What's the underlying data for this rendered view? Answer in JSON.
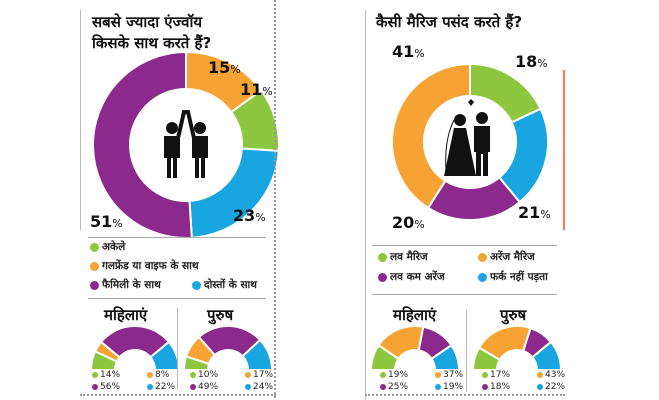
{
  "colors": {
    "green": "#8dc63f",
    "orange": "#f6a333",
    "purple": "#8b2a8c",
    "blue": "#19a6e0"
  },
  "left": {
    "title_line1": "सबसे ज्यादा एंज्वॉय",
    "title_line2": "किसके साथ करते हैं?",
    "chart_data": {
      "type": "pie",
      "segments": [
        {
          "key": "orange",
          "label": "गलफ्रेंड या वाइफ के साथ",
          "value": 15,
          "text": "15"
        },
        {
          "key": "green",
          "label": "अकेले",
          "value": 11,
          "text": "11"
        },
        {
          "key": "blue",
          "label": "दोस्तों के साथ",
          "value": 23,
          "text": "23"
        },
        {
          "key": "purple",
          "label": "फैमिली के साथ",
          "value": 51,
          "text": "51"
        }
      ]
    },
    "legend": [
      "अकेले",
      "गलफ्रेंड या वाइफ के साथ",
      "फैमिली के साथ",
      "दोस्तों के साथ"
    ],
    "women": {
      "label": "महिलाएं",
      "values": {
        "green": 14,
        "orange": 8,
        "purple": 56,
        "blue": 22
      },
      "texts": [
        "14",
        "8",
        "56",
        "22"
      ]
    },
    "men": {
      "label": "पुरुष",
      "values": {
        "green": 10,
        "orange": 17,
        "purple": 49,
        "blue": 24
      },
      "texts": [
        "10",
        "17",
        "49",
        "24"
      ]
    }
  },
  "right": {
    "title": "कैसी मैरिज पसंद करते हैं?",
    "chart_data": {
      "type": "pie",
      "segments": [
        {
          "key": "green",
          "label": "लव मैरिज",
          "value": 18,
          "text": "18"
        },
        {
          "key": "blue",
          "label": "फर्क नहीं पड़ता",
          "value": 21,
          "text": "21"
        },
        {
          "key": "purple",
          "label": "लव कम अरेंज",
          "value": 20,
          "text": "20"
        },
        {
          "key": "orange",
          "label": "अरेंज मैरिज",
          "value": 41,
          "text": "41"
        }
      ]
    },
    "legend": [
      "लव मैरिज",
      "अरेंज मैरिज",
      "लव कम अरेंज",
      "फर्क नहीं पड़ता"
    ],
    "women": {
      "label": "महिलाएं",
      "values": {
        "green": 19,
        "orange": 37,
        "purple": 25,
        "blue": 19
      },
      "texts": [
        "19",
        "37",
        "25",
        "19"
      ]
    },
    "men": {
      "label": "पुरुष",
      "values": {
        "green": 17,
        "orange": 43,
        "purple": 18,
        "blue": 22
      },
      "texts": [
        "17",
        "43",
        "18",
        "22"
      ]
    }
  },
  "percent_sign": "%"
}
